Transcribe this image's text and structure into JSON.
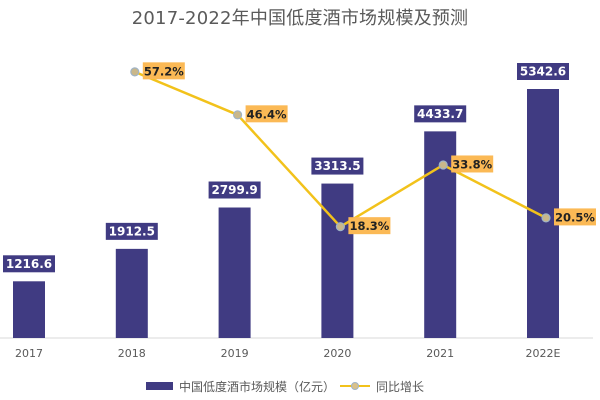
{
  "title": "2017-2022年中国低度酒市场规模及预测",
  "legend": {
    "bar_label": "中国低度酒市场规模（亿元）",
    "line_label": "同比增长"
  },
  "colors": {
    "bar": "#403b82",
    "line": "#f2c21b",
    "line_label_bg": "#fbb955",
    "axis": "#d9d9d9",
    "text": "#595959"
  },
  "chart_data": {
    "type": "bar",
    "title": "2017-2022年中国低度酒市场规模及预测",
    "xlabel": "",
    "ylabel": "",
    "categories": [
      "2017",
      "2018",
      "2019",
      "2020",
      "2021",
      "2022E"
    ],
    "series": [
      {
        "name": "中国低度酒市场规模（亿元）",
        "type": "bar",
        "values": [
          1216.6,
          1912.5,
          2799.9,
          3313.5,
          4433.7,
          5342.6
        ],
        "labels": [
          "1216.6",
          "1912.5",
          "2799.9",
          "3313.5",
          "4433.7",
          "5342.6"
        ]
      },
      {
        "name": "同比增长",
        "type": "line",
        "values": [
          null,
          57.2,
          46.4,
          18.3,
          33.8,
          20.5
        ],
        "labels": [
          "",
          "57.2%",
          "46.4%",
          "18.3%",
          "33.8%",
          "20.5%"
        ]
      }
    ],
    "grid": false,
    "legend_position": "bottom",
    "data_labels": true
  }
}
